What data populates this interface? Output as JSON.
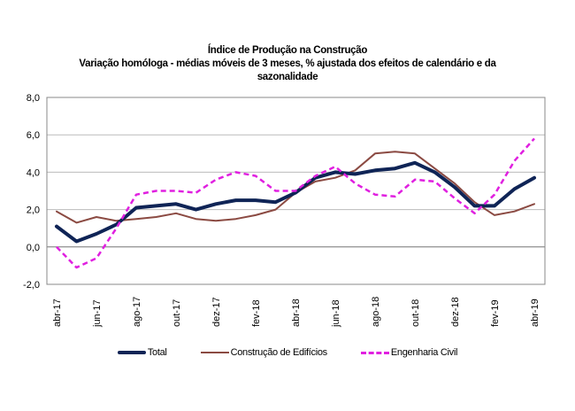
{
  "chart_data": {
    "type": "line",
    "title": "Índice de Produção na Construção",
    "subtitle_line1": "Variação homóloga - médias móveis de 3 meses, % ajustada dos efeitos de calendário e da",
    "subtitle_line2": "sazonalidade",
    "xlabel": "",
    "ylabel": "",
    "ylim": [
      -2.0,
      8.0
    ],
    "yticks": [
      "8,0",
      "6,0",
      "4,0",
      "2,0",
      "0,0",
      "-2,0"
    ],
    "ytick_values": [
      8,
      6,
      4,
      2,
      0,
      -2
    ],
    "x": [
      "abr-17",
      "mai-17",
      "jun-17",
      "jul-17",
      "ago-17",
      "set-17",
      "out-17",
      "nov-17",
      "dez-17",
      "jan-18",
      "fev-18",
      "mar-18",
      "abr-18",
      "mai-18",
      "jun-18",
      "jul-18",
      "ago-18",
      "set-18",
      "out-18",
      "nov-18",
      "dez-18",
      "jan-19",
      "fev-19",
      "mar-19",
      "abr-19"
    ],
    "xtick_labels": [
      "abr-17",
      "jun-17",
      "ago-17",
      "out-17",
      "dez-17",
      "fev-18",
      "abr-18",
      "jun-18",
      "ago-18",
      "out-18",
      "dez-18",
      "fev-19",
      "abr-19"
    ],
    "grid": true,
    "legend_position": "bottom",
    "series": [
      {
        "name": "Total",
        "color": "#0f2456",
        "style": "solid-thick",
        "values": [
          1.1,
          0.3,
          0.7,
          1.2,
          2.1,
          2.2,
          2.3,
          2.0,
          2.3,
          2.5,
          2.5,
          2.4,
          2.9,
          3.7,
          4.0,
          3.9,
          4.1,
          4.2,
          4.5,
          4.0,
          3.2,
          2.2,
          2.2,
          3.1,
          3.7
        ]
      },
      {
        "name": "Construção de Edifícios",
        "color": "#8b4a42",
        "style": "solid",
        "values": [
          1.9,
          1.3,
          1.6,
          1.4,
          1.5,
          1.6,
          1.8,
          1.5,
          1.4,
          1.5,
          1.7,
          2.0,
          2.9,
          3.5,
          3.7,
          4.1,
          5.0,
          5.1,
          5.0,
          4.2,
          3.4,
          2.4,
          1.7,
          1.9,
          2.3
        ]
      },
      {
        "name": "Engenharia Civil",
        "color": "#e020e0",
        "style": "dashed",
        "values": [
          0.0,
          -1.1,
          -0.6,
          1.0,
          2.8,
          3.0,
          3.0,
          2.9,
          3.6,
          4.0,
          3.8,
          3.0,
          3.0,
          3.8,
          4.3,
          3.4,
          2.8,
          2.7,
          3.6,
          3.5,
          2.6,
          1.8,
          2.8,
          4.6,
          5.8
        ]
      }
    ]
  }
}
